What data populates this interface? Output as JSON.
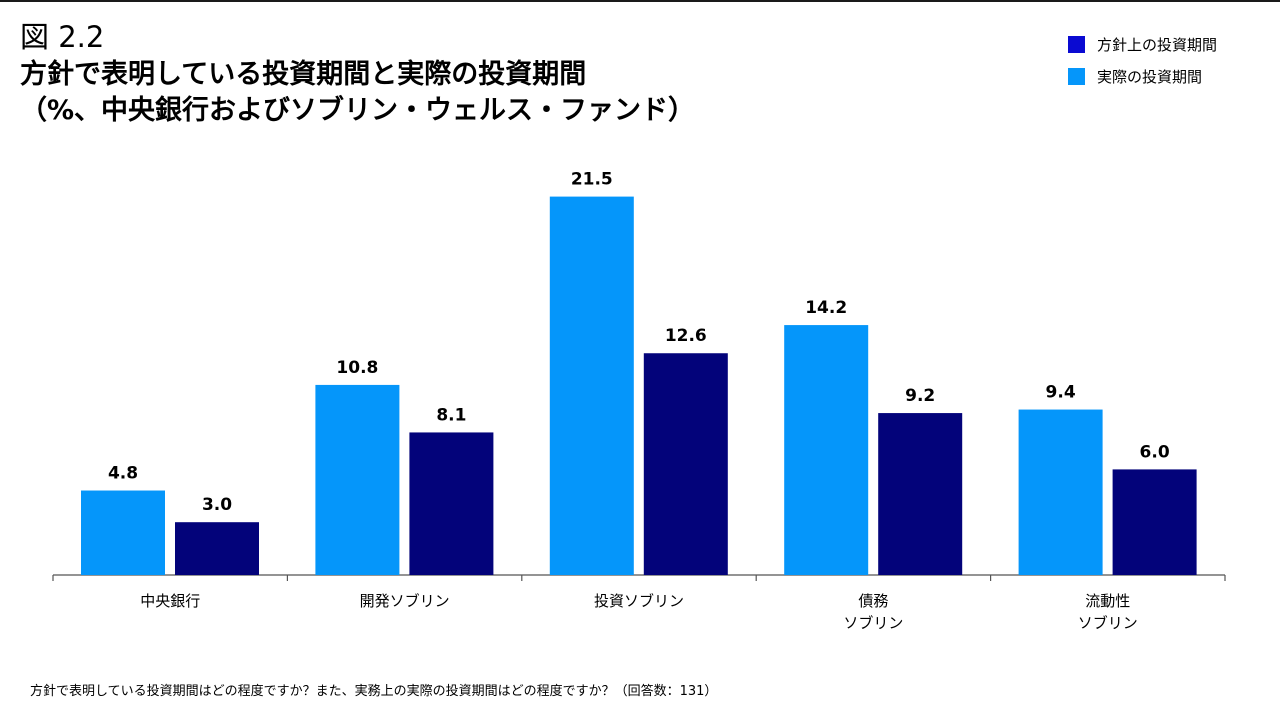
{
  "header": {
    "figure_label": "図 2.2",
    "title": "方針で表明している投資期間と実際の投資期間",
    "subtitle": "（%、中央銀行およびソブリン・ウェルス・ファンド）"
  },
  "footnote": "方針で表明している投資期間はどの程度ですか？また、実務上の実際の投資期間はどの程度ですか？（回答数：131）",
  "colors": {
    "actual": "#0596fa",
    "policy": "#03037a",
    "legend_policy_swatch": "#0a0ad2",
    "axis": "#555555"
  },
  "chart_data": {
    "type": "bar",
    "categories": [
      "中央銀行",
      "開発ソブリン",
      "投資ソブリン",
      "債務\nソブリン",
      "流動性\nソブリン"
    ],
    "series": [
      {
        "name": "実際の投資期間",
        "values": [
          4.8,
          10.8,
          21.5,
          14.2,
          9.4
        ]
      },
      {
        "name": "方針上の投資期間",
        "values": [
          3.0,
          8.1,
          12.6,
          9.2,
          6.0
        ]
      }
    ],
    "legend_order": [
      "方針上の投資期間",
      "実際の投資期間"
    ],
    "legend_position": "top-right",
    "data_labels": true,
    "ylim": [
      0,
      22
    ],
    "grid": false,
    "y_axis_visible": false,
    "title": "方針で表明している投資期間と実際の投資期間",
    "xlabel": "",
    "ylabel": ""
  }
}
